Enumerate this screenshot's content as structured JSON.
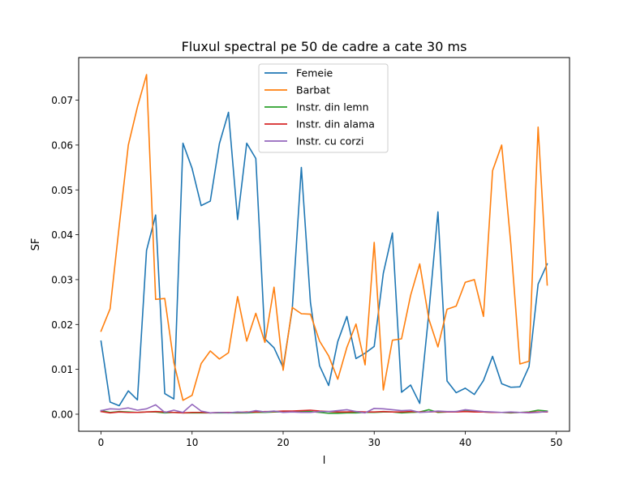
{
  "chart_data": {
    "type": "line",
    "title": "Fluxul spectral pe 50 de cadre a cate 30 ms",
    "xlabel": "l",
    "ylabel": "SF",
    "xlim": [
      -2.45,
      51.45
    ],
    "ylim": [
      -0.0038,
      0.0795
    ],
    "xticks": [
      0,
      10,
      20,
      30,
      40,
      50
    ],
    "yticks": [
      0.0,
      0.01,
      0.02,
      0.03,
      0.04,
      0.05,
      0.06,
      0.07
    ],
    "xtick_labels": [
      "0",
      "10",
      "20",
      "30",
      "40",
      "50"
    ],
    "ytick_labels": [
      "0.00",
      "0.01",
      "0.02",
      "0.03",
      "0.04",
      "0.05",
      "0.06",
      "0.07"
    ],
    "grid": false,
    "legend_position": "upper center",
    "x": [
      0,
      1,
      2,
      3,
      4,
      5,
      6,
      7,
      8,
      9,
      10,
      11,
      12,
      13,
      14,
      15,
      16,
      17,
      18,
      19,
      20,
      21,
      22,
      23,
      24,
      25,
      26,
      27,
      28,
      29,
      30,
      31,
      32,
      33,
      34,
      35,
      36,
      37,
      38,
      39,
      40,
      41,
      42,
      43,
      44,
      45,
      46,
      47,
      48,
      49
    ],
    "series": [
      {
        "name": "Femeie",
        "color": "#1f77b4",
        "values": [
          0.0163,
          0.0027,
          0.0019,
          0.0052,
          0.0032,
          0.0365,
          0.0444,
          0.0046,
          0.0034,
          0.0604,
          0.0548,
          0.0465,
          0.0475,
          0.0603,
          0.0673,
          0.0434,
          0.0604,
          0.057,
          0.0168,
          0.0148,
          0.0104,
          0.0234,
          0.055,
          0.0249,
          0.0108,
          0.0064,
          0.0162,
          0.0218,
          0.0124,
          0.0136,
          0.0151,
          0.0314,
          0.0404,
          0.0049,
          0.0065,
          0.0024,
          0.0226,
          0.0451,
          0.0074,
          0.0048,
          0.0058,
          0.0044,
          0.0075,
          0.0129,
          0.0068,
          0.006,
          0.0061,
          0.0106,
          0.029,
          0.0335
        ]
      },
      {
        "name": "Barbat",
        "color": "#ff7f0e",
        "values": [
          0.0185,
          0.0235,
          0.042,
          0.06,
          0.0685,
          0.0757,
          0.0256,
          0.0258,
          0.0115,
          0.0031,
          0.0042,
          0.0113,
          0.0141,
          0.0123,
          0.0137,
          0.0262,
          0.0163,
          0.0225,
          0.016,
          0.0283,
          0.0098,
          0.0238,
          0.0224,
          0.0223,
          0.0163,
          0.013,
          0.0078,
          0.0149,
          0.0201,
          0.011,
          0.0383,
          0.0054,
          0.0165,
          0.0168,
          0.0265,
          0.0335,
          0.0212,
          0.015,
          0.0234,
          0.0241,
          0.0294,
          0.03,
          0.0218,
          0.0543,
          0.06,
          0.038,
          0.0112,
          0.0118,
          0.064,
          0.0288
        ]
      },
      {
        "name": "Instr. din lemn",
        "color": "#2ca02c",
        "values": [
          0.0008,
          0.0004,
          0.0006,
          0.0005,
          0.0004,
          0.0005,
          0.0005,
          0.0003,
          0.0004,
          0.0003,
          0.0003,
          0.0003,
          0.0003,
          0.0003,
          0.0003,
          0.0003,
          0.0003,
          0.0004,
          0.0004,
          0.0005,
          0.0005,
          0.0006,
          0.0007,
          0.0006,
          0.0004,
          0.0002,
          0.0002,
          0.0003,
          0.0003,
          0.0004,
          0.0004,
          0.0005,
          0.0005,
          0.0003,
          0.0004,
          0.0005,
          0.001,
          0.0004,
          0.0005,
          0.0006,
          0.0007,
          0.0006,
          0.0005,
          0.0004,
          0.0004,
          0.0003,
          0.0004,
          0.0005,
          0.0009,
          0.0007
        ]
      },
      {
        "name": "Instr. din alama",
        "color": "#d62728",
        "values": [
          0.0006,
          0.0003,
          0.0005,
          0.0004,
          0.0004,
          0.0005,
          0.0006,
          0.0005,
          0.0004,
          0.0003,
          0.0004,
          0.0004,
          0.0003,
          0.0004,
          0.0004,
          0.0004,
          0.0005,
          0.0005,
          0.0006,
          0.0006,
          0.0007,
          0.0007,
          0.0008,
          0.0009,
          0.0007,
          0.0006,
          0.0005,
          0.0005,
          0.0006,
          0.0005,
          0.0005,
          0.0006,
          0.0005,
          0.0005,
          0.0006,
          0.0005,
          0.0005,
          0.0006,
          0.0005,
          0.0005,
          0.0006,
          0.0005,
          0.0005,
          0.0004,
          0.0004,
          0.0004,
          0.0004,
          0.0004,
          0.0005,
          0.0005
        ]
      },
      {
        "name": "Instr. cu corzi",
        "color": "#9467bd",
        "values": [
          0.0008,
          0.0012,
          0.0011,
          0.0014,
          0.0009,
          0.0012,
          0.0021,
          0.0004,
          0.0009,
          0.0004,
          0.0022,
          0.0007,
          0.0003,
          0.0004,
          0.0003,
          0.0005,
          0.0004,
          0.0008,
          0.0005,
          0.0007,
          0.0004,
          0.0005,
          0.0004,
          0.0004,
          0.0006,
          0.0006,
          0.0008,
          0.001,
          0.0006,
          0.0003,
          0.0013,
          0.0012,
          0.001,
          0.0008,
          0.0009,
          0.0004,
          0.0005,
          0.0007,
          0.0006,
          0.0006,
          0.001,
          0.0008,
          0.0006,
          0.0005,
          0.0004,
          0.0005,
          0.0004,
          0.0003,
          0.0004,
          0.0006
        ]
      }
    ]
  }
}
